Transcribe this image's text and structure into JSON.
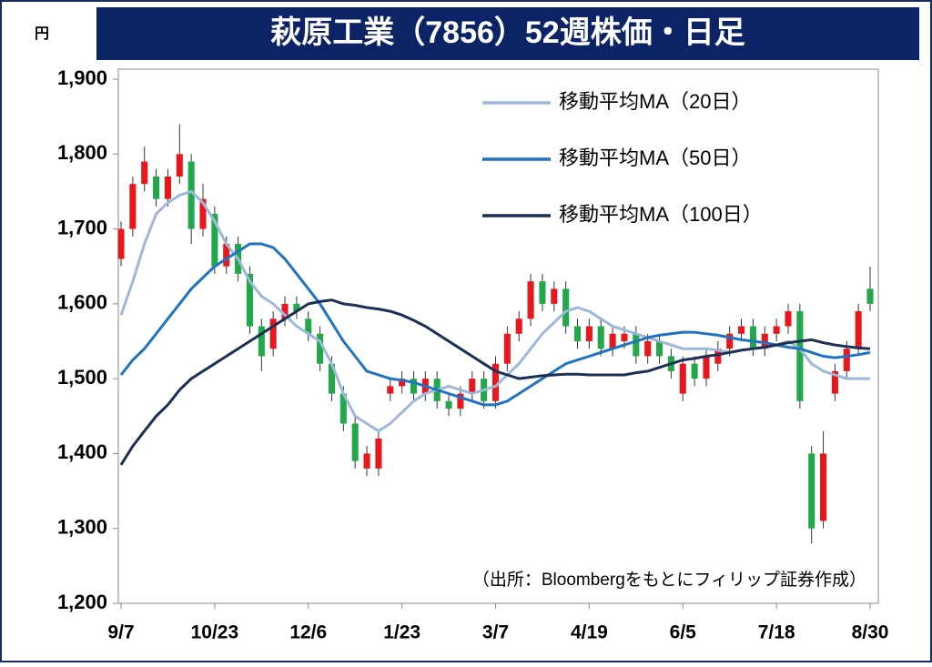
{
  "chart_data": {
    "type": "candlestick",
    "title": "萩原工業（7856）52週株価・日足",
    "y_unit_label": "円",
    "note": "（出所：Bloombergをもとにフィリップ証券作成）",
    "categories": [
      "9/7",
      null,
      null,
      null,
      null,
      null,
      null,
      null,
      "10/23",
      null,
      null,
      null,
      null,
      null,
      null,
      null,
      "12/6",
      null,
      null,
      null,
      null,
      null,
      null,
      null,
      "1/23",
      null,
      null,
      null,
      null,
      null,
      null,
      null,
      "3/7",
      null,
      null,
      null,
      null,
      null,
      null,
      null,
      "4/19",
      null,
      null,
      null,
      null,
      null,
      null,
      null,
      "6/5",
      null,
      null,
      null,
      null,
      null,
      null,
      null,
      "7/18",
      null,
      null,
      null,
      null,
      null,
      null,
      null,
      "8/30"
    ],
    "open": [
      1660,
      1700,
      1760,
      1770,
      1740,
      1770,
      1790,
      1700,
      1720,
      1650,
      1680,
      1640,
      1570,
      1540,
      1580,
      1600,
      1580,
      1560,
      1520,
      1480,
      1440,
      1380,
      1380,
      1480,
      1490,
      1500,
      1480,
      1500,
      1470,
      1460,
      1480,
      1500,
      1470,
      1520,
      1560,
      1580,
      1630,
      1600,
      1620,
      1570,
      1550,
      1570,
      1540,
      1550,
      1560,
      1530,
      1550,
      1530,
      1480,
      1520,
      1500,
      1520,
      1540,
      1560,
      1570,
      1540,
      1560,
      1570,
      1590,
      1400,
      1310,
      1480,
      1510,
      1540,
      1620
    ],
    "high": [
      1710,
      1770,
      1810,
      1780,
      1780,
      1840,
      1800,
      1760,
      1730,
      1690,
      1690,
      1650,
      1580,
      1590,
      1610,
      1610,
      1590,
      1570,
      1530,
      1490,
      1450,
      1410,
      1430,
      1500,
      1510,
      1510,
      1510,
      1510,
      1480,
      1490,
      1510,
      1510,
      1530,
      1570,
      1590,
      1640,
      1640,
      1630,
      1630,
      1580,
      1580,
      1580,
      1570,
      1570,
      1570,
      1560,
      1560,
      1540,
      1530,
      1530,
      1540,
      1550,
      1570,
      1580,
      1580,
      1570,
      1580,
      1600,
      1600,
      1410,
      1430,
      1520,
      1550,
      1600,
      1650
    ],
    "low": [
      1650,
      1690,
      1750,
      1730,
      1730,
      1760,
      1680,
      1690,
      1640,
      1640,
      1630,
      1560,
      1510,
      1530,
      1570,
      1580,
      1550,
      1510,
      1470,
      1430,
      1380,
      1370,
      1370,
      1470,
      1480,
      1470,
      1470,
      1460,
      1450,
      1450,
      1470,
      1460,
      1460,
      1510,
      1550,
      1570,
      1590,
      1590,
      1560,
      1540,
      1540,
      1530,
      1530,
      1540,
      1520,
      1520,
      1520,
      1500,
      1470,
      1490,
      1490,
      1510,
      1530,
      1550,
      1530,
      1530,
      1550,
      1560,
      1460,
      1280,
      1300,
      1470,
      1500,
      1530,
      1590
    ],
    "close": [
      1700,
      1760,
      1790,
      1740,
      1770,
      1800,
      1700,
      1740,
      1650,
      1680,
      1640,
      1570,
      1530,
      1580,
      1600,
      1590,
      1560,
      1520,
      1480,
      1440,
      1390,
      1400,
      1420,
      1490,
      1500,
      1480,
      1500,
      1470,
      1460,
      1480,
      1500,
      1470,
      1520,
      1560,
      1580,
      1630,
      1600,
      1620,
      1570,
      1550,
      1570,
      1540,
      1560,
      1560,
      1530,
      1550,
      1530,
      1510,
      1520,
      1500,
      1530,
      1540,
      1560,
      1570,
      1540,
      1560,
      1570,
      1590,
      1470,
      1300,
      1400,
      1510,
      1540,
      1590,
      1600
    ],
    "up_color": "#e8161d",
    "down_color": "#22a84a",
    "series": [
      {
        "name": "移動平均MA（20日）",
        "color": "#9db8d9",
        "values": [
          1585,
          1630,
          1680,
          1720,
          1735,
          1745,
          1750,
          1735,
          1710,
          1680,
          1660,
          1630,
          1610,
          1600,
          1585,
          1570,
          1560,
          1550,
          1520,
          1480,
          1450,
          1440,
          1430,
          1440,
          1455,
          1470,
          1480,
          1485,
          1490,
          1485,
          1480,
          1485,
          1490,
          1505,
          1520,
          1540,
          1560,
          1575,
          1590,
          1595,
          1590,
          1580,
          1570,
          1565,
          1560,
          1555,
          1550,
          1545,
          1540,
          1540,
          1540,
          1538,
          1535,
          1538,
          1540,
          1542,
          1545,
          1550,
          1540,
          1520,
          1510,
          1505,
          1500,
          1500,
          1500
        ]
      },
      {
        "name": "移動平均MA（50日）",
        "color": "#1f73c0",
        "values": [
          1505,
          1525,
          1540,
          1560,
          1580,
          1600,
          1620,
          1635,
          1650,
          1660,
          1670,
          1680,
          1680,
          1675,
          1660,
          1640,
          1620,
          1600,
          1575,
          1550,
          1530,
          1510,
          1505,
          1500,
          1498,
          1495,
          1490,
          1485,
          1480,
          1475,
          1470,
          1465,
          1465,
          1470,
          1480,
          1490,
          1500,
          1510,
          1520,
          1525,
          1530,
          1535,
          1540,
          1545,
          1550,
          1555,
          1558,
          1560,
          1562,
          1562,
          1560,
          1558,
          1555,
          1552,
          1550,
          1548,
          1545,
          1542,
          1540,
          1535,
          1530,
          1528,
          1530,
          1532,
          1535
        ]
      },
      {
        "name": "移動平均MA（100日）",
        "color": "#1c2f55",
        "values": [
          1385,
          1410,
          1430,
          1450,
          1465,
          1485,
          1500,
          1510,
          1520,
          1530,
          1540,
          1550,
          1560,
          1570,
          1580,
          1590,
          1600,
          1603,
          1605,
          1600,
          1598,
          1595,
          1593,
          1590,
          1585,
          1578,
          1570,
          1560,
          1550,
          1540,
          1530,
          1520,
          1510,
          1505,
          1500,
          1502,
          1504,
          1505,
          1506,
          1506,
          1505,
          1505,
          1505,
          1505,
          1508,
          1510,
          1515,
          1520,
          1525,
          1527,
          1530,
          1532,
          1535,
          1538,
          1540,
          1542,
          1545,
          1548,
          1550,
          1552,
          1548,
          1545,
          1543,
          1541,
          1540
        ]
      }
    ],
    "ylim": [
      1200,
      1900
    ],
    "yticks": [
      {
        "value": 1200,
        "label": "1,200"
      },
      {
        "value": 1300,
        "label": "1,300"
      },
      {
        "value": 1400,
        "label": "1,400"
      },
      {
        "value": 1500,
        "label": "1,500"
      },
      {
        "value": 1600,
        "label": "1,600"
      },
      {
        "value": 1700,
        "label": "1,700"
      },
      {
        "value": 1800,
        "label": "1,800"
      },
      {
        "value": 1900,
        "label": "1,900"
      }
    ],
    "legend_position": "upper-right"
  }
}
